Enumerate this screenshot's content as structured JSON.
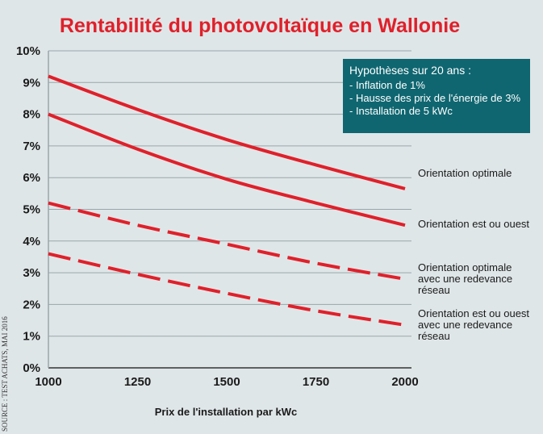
{
  "source": "SOURCE : TEST ACHATS, MAI 2016",
  "hypotheses": {
    "title": "Hypothèses sur 20 ans :",
    "items": [
      "- Inflation de 1%",
      "- Hausse des prix de l'énergie de 3%",
      "- Installation de 5 kWc"
    ]
  },
  "chart_data": {
    "type": "line",
    "title": "Rentabilité du photovoltaïque en Wallonie",
    "xlabel": "Prix de l'installation par kWc",
    "ylabel": "",
    "x": [
      1000,
      1250,
      1500,
      1750,
      2000
    ],
    "xticks": [
      "1000",
      "1250",
      "1500",
      "1750",
      "2000"
    ],
    "yticks": [
      "0%",
      "1%",
      "2%",
      "3%",
      "4%",
      "5%",
      "6%",
      "7%",
      "8%",
      "9%",
      "10%"
    ],
    "xlim": [
      1000,
      2000
    ],
    "ylim": [
      0,
      10
    ],
    "grid": true,
    "series": [
      {
        "name": "Orientation optimale",
        "label_lines": [
          "Orientation optimale"
        ],
        "style": "solid",
        "color": "#e0202a",
        "values": [
          9.2,
          8.15,
          7.2,
          6.4,
          5.65
        ]
      },
      {
        "name": "Orientation est ou ouest",
        "label_lines": [
          "Orientation est ou ouest"
        ],
        "style": "solid",
        "color": "#e0202a",
        "values": [
          8.0,
          6.9,
          5.95,
          5.2,
          4.5
        ]
      },
      {
        "name": "Orientation optimale avec une redevance réseau",
        "label_lines": [
          "Orientation optimale",
          "avec une redevance",
          "réseau"
        ],
        "style": "dashed",
        "color": "#e0202a",
        "values": [
          5.2,
          4.5,
          3.9,
          3.3,
          2.8
        ]
      },
      {
        "name": "Orientation est ou ouest avec une redevance réseau",
        "label_lines": [
          "Orientation est ou ouest",
          "avec une redevance",
          "réseau"
        ],
        "style": "dashed",
        "color": "#e0202a",
        "values": [
          3.6,
          2.95,
          2.35,
          1.8,
          1.35
        ]
      }
    ]
  }
}
